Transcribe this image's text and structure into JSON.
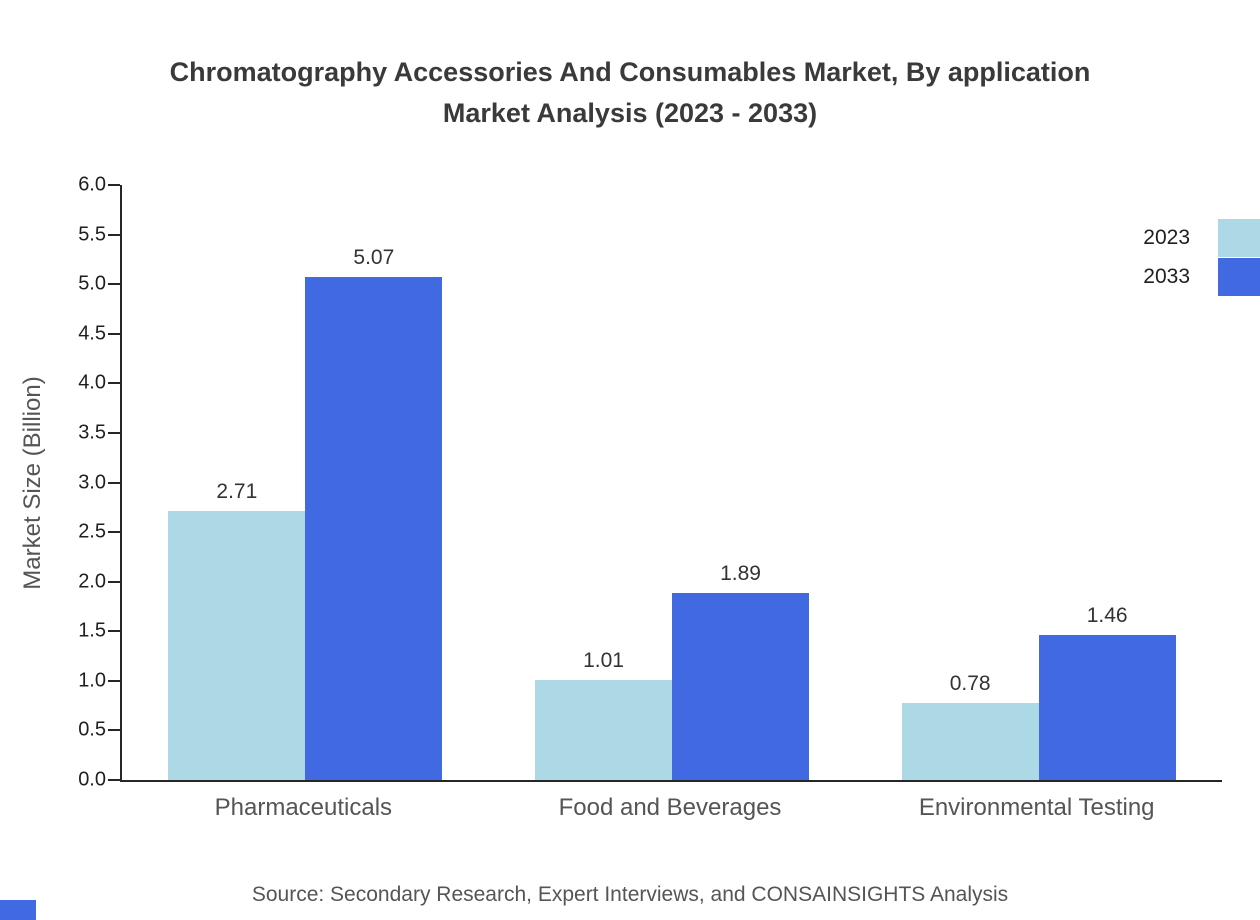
{
  "title": {
    "line1": "Chromatography Accessories And Consumables Market, By application",
    "line2": "Market Analysis (2023 - 2033)"
  },
  "source": "Source: Secondary Research, Expert Interviews, and CONSAINSIGHTS Analysis",
  "colors": {
    "series_2023": "#add8e6",
    "series_2033": "#4169e1",
    "axis": "#262626",
    "title_text": "#3a3a3a",
    "muted_text": "#555555",
    "corner_mark": "#4169e1"
  },
  "chart_data": {
    "type": "bar",
    "categories": [
      "Pharmaceuticals",
      "Food and Beverages",
      "Environmental Testing"
    ],
    "series": [
      {
        "name": "2023",
        "color": "#add8e6",
        "values": [
          2.71,
          1.01,
          0.78
        ]
      },
      {
        "name": "2033",
        "color": "#4169e1",
        "values": [
          5.07,
          1.89,
          1.46
        ]
      }
    ],
    "title": "Chromatography Accessories And Consumables Market, By application Market Analysis (2023 - 2033)",
    "xlabel": "",
    "ylabel": "Market Size (Billion)",
    "ylim": [
      0,
      6
    ],
    "ytick_step": 0.5,
    "yticks": [
      "0.0",
      "0.5",
      "1.0",
      "1.5",
      "2.0",
      "2.5",
      "3.0",
      "3.5",
      "4.0",
      "4.5",
      "5.0",
      "5.5",
      "6.0"
    ],
    "grid": false,
    "legend_position": "top-right"
  }
}
